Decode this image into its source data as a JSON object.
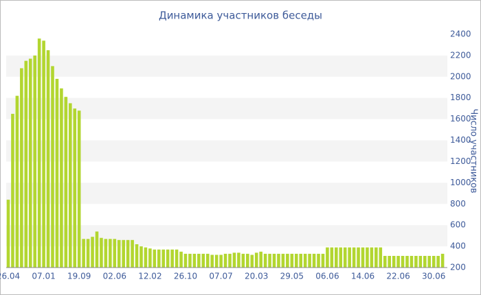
{
  "chart_data": {
    "type": "bar",
    "title": "Динамика участников беседы",
    "y_label": "Число участников",
    "categories": [
      "26.04",
      null,
      null,
      null,
      null,
      null,
      null,
      null,
      "07.01",
      null,
      null,
      null,
      null,
      null,
      null,
      null,
      "19.09",
      null,
      null,
      null,
      null,
      null,
      null,
      null,
      "02.06",
      null,
      null,
      null,
      null,
      null,
      null,
      null,
      "12.02",
      null,
      null,
      null,
      null,
      null,
      null,
      null,
      "26.10",
      null,
      null,
      null,
      null,
      null,
      null,
      null,
      "07.07",
      null,
      null,
      null,
      null,
      null,
      null,
      null,
      "20.03",
      null,
      null,
      null,
      null,
      null,
      null,
      null,
      "29.05",
      null,
      null,
      null,
      null,
      null,
      null,
      null,
      "06.06",
      null,
      null,
      null,
      null,
      null,
      null,
      null,
      "14.06",
      null,
      null,
      null,
      null,
      null,
      null,
      null,
      "22.06",
      null,
      null,
      null,
      null,
      null,
      null,
      null,
      "30.06",
      null,
      null
    ],
    "values": [
      840,
      1650,
      1820,
      2080,
      2150,
      2170,
      2200,
      2360,
      2340,
      2250,
      2100,
      1980,
      1890,
      1810,
      1750,
      1700,
      1680,
      470,
      470,
      490,
      540,
      480,
      470,
      470,
      470,
      460,
      460,
      460,
      460,
      420,
      400,
      390,
      380,
      370,
      370,
      370,
      370,
      370,
      370,
      350,
      330,
      330,
      330,
      330,
      330,
      330,
      320,
      320,
      320,
      330,
      330,
      340,
      340,
      330,
      330,
      320,
      340,
      350,
      330,
      330,
      330,
      330,
      330,
      330,
      330,
      330,
      330,
      330,
      330,
      330,
      330,
      330,
      390,
      390,
      390,
      390,
      390,
      390,
      390,
      390,
      390,
      390,
      390,
      390,
      390,
      310,
      310,
      310,
      310,
      310,
      310,
      310,
      310,
      310,
      310,
      310,
      310,
      310,
      330
    ],
    "color": "#b2d630",
    "ylim": [
      200,
      2400
    ],
    "yticks": [
      200,
      400,
      600,
      800,
      1000,
      1200,
      1400,
      1600,
      1800,
      2000,
      2200,
      2400
    ],
    "grid": true
  }
}
